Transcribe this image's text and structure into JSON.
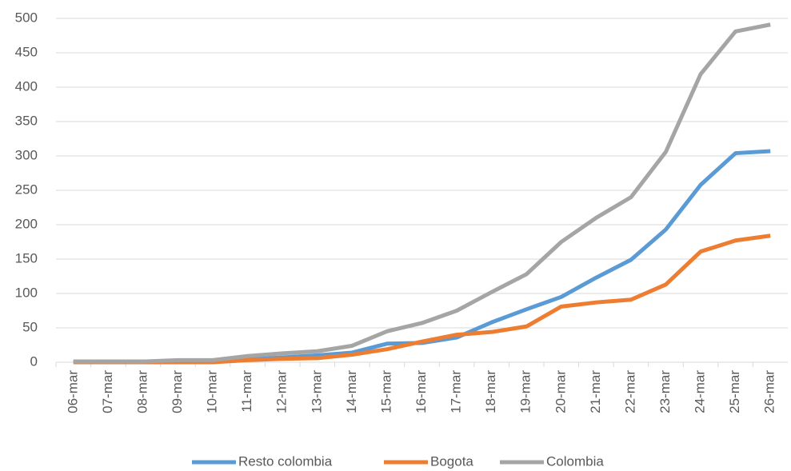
{
  "chart_data": {
    "type": "line",
    "categories": [
      "06-mar",
      "07-mar",
      "08-mar",
      "09-mar",
      "10-mar",
      "11-mar",
      "12-mar",
      "13-mar",
      "14-mar",
      "15-mar",
      "16-mar",
      "17-mar",
      "18-mar",
      "19-mar",
      "20-mar",
      "21-mar",
      "22-mar",
      "23-mar",
      "24-mar",
      "25-mar",
      "26-mar"
    ],
    "series": [
      {
        "name": "Resto colombia",
        "color": "#5b9bd5",
        "values": [
          1,
          1,
          1,
          1,
          1,
          4,
          7,
          10,
          14,
          27,
          28,
          36,
          58,
          77,
          95,
          123,
          149,
          193,
          258,
          304,
          307
        ]
      },
      {
        "name": "Bogota",
        "color": "#ed7d31",
        "values": [
          0,
          0,
          0,
          0,
          0,
          3,
          5,
          6,
          11,
          19,
          30,
          40,
          44,
          52,
          81,
          87,
          91,
          113,
          161,
          177,
          184
        ]
      },
      {
        "name": "Colombia",
        "color": "#a5a5a5",
        "values": [
          1,
          1,
          1,
          3,
          3,
          9,
          13,
          16,
          24,
          45,
          57,
          75,
          102,
          128,
          175,
          210,
          240,
          306,
          419,
          481,
          491
        ]
      }
    ],
    "ylim": [
      0,
      500
    ],
    "yticks": [
      0,
      50,
      100,
      150,
      200,
      250,
      300,
      350,
      400,
      450,
      500
    ],
    "grid": true,
    "legend": "bottom"
  }
}
